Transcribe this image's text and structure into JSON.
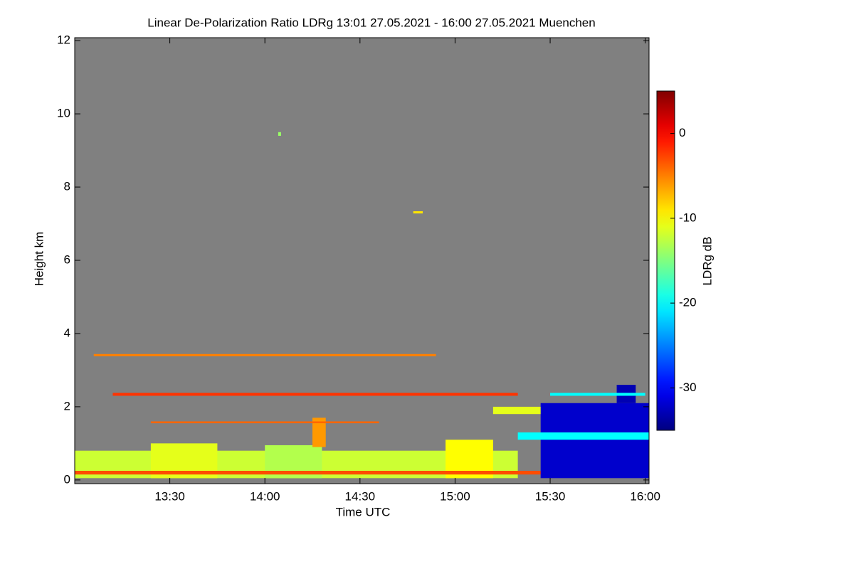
{
  "chart_data": {
    "type": "heatmap",
    "title": "Linear De-Polarization Ratio LDRg   13:01 27.05.2021 - 16:00 27.05.2021 Muenchen",
    "xlabel": "Time UTC",
    "ylabel": "Height km",
    "colorbar_label": "LDRg dB",
    "xlim": [
      13.0,
      16.02
    ],
    "ylim": [
      -0.1,
      12.08
    ],
    "xticks": [
      {
        "value": 13.5,
        "label": "13:30"
      },
      {
        "value": 14.0,
        "label": "14:00"
      },
      {
        "value": 14.5,
        "label": "14:30"
      },
      {
        "value": 15.0,
        "label": "15:00"
      },
      {
        "value": 15.5,
        "label": "15:30"
      },
      {
        "value": 16.0,
        "label": "16:00"
      }
    ],
    "yticks": [
      0,
      2,
      4,
      6,
      8,
      10,
      12
    ],
    "clim": [
      -35,
      5
    ],
    "cticks": [
      0,
      -10,
      -20,
      -30
    ],
    "colormap": "jet",
    "background": "#808080",
    "cells": [
      {
        "x0": 13.0,
        "x1": 15.33,
        "y0": 0.05,
        "y1": 0.8,
        "value": -12
      },
      {
        "x0": 13.4,
        "x1": 13.75,
        "y0": 0.05,
        "y1": 1.0,
        "value": -11
      },
      {
        "x0": 14.0,
        "x1": 14.3,
        "y0": 0.05,
        "y1": 0.95,
        "value": -13
      },
      {
        "x0": 14.95,
        "x1": 15.2,
        "y0": 0.05,
        "y1": 1.1,
        "value": -10
      },
      {
        "x0": 13.0,
        "x1": 15.5,
        "y0": 0.15,
        "y1": 0.25,
        "value": -3
      },
      {
        "x0": 14.25,
        "x1": 14.32,
        "y0": 0.9,
        "y1": 1.7,
        "value": -6
      },
      {
        "x0": 13.2,
        "x1": 15.33,
        "y0": 2.3,
        "y1": 2.38,
        "value": -2
      },
      {
        "x0": 13.1,
        "x1": 14.9,
        "y0": 3.38,
        "y1": 3.44,
        "value": -5
      },
      {
        "x0": 13.4,
        "x1": 14.6,
        "y0": 1.55,
        "y1": 1.6,
        "value": -4
      },
      {
        "x0": 15.2,
        "x1": 15.5,
        "y0": 1.8,
        "y1": 2.0,
        "value": -11
      },
      {
        "x0": 15.45,
        "x1": 16.02,
        "y0": 0.05,
        "y1": 2.1,
        "value": -32
      },
      {
        "x0": 15.85,
        "x1": 15.95,
        "y0": 2.1,
        "y1": 2.6,
        "value": -33
      },
      {
        "x0": 15.33,
        "x1": 16.02,
        "y0": 1.1,
        "y1": 1.3,
        "value": -20
      },
      {
        "x0": 15.5,
        "x1": 16.0,
        "y0": 2.3,
        "y1": 2.38,
        "value": -20
      },
      {
        "x0": 14.07,
        "x1": 14.085,
        "y0": 9.4,
        "y1": 9.5,
        "value": -14
      },
      {
        "x0": 14.78,
        "x1": 14.83,
        "y0": 7.28,
        "y1": 7.34,
        "value": -9
      }
    ]
  }
}
